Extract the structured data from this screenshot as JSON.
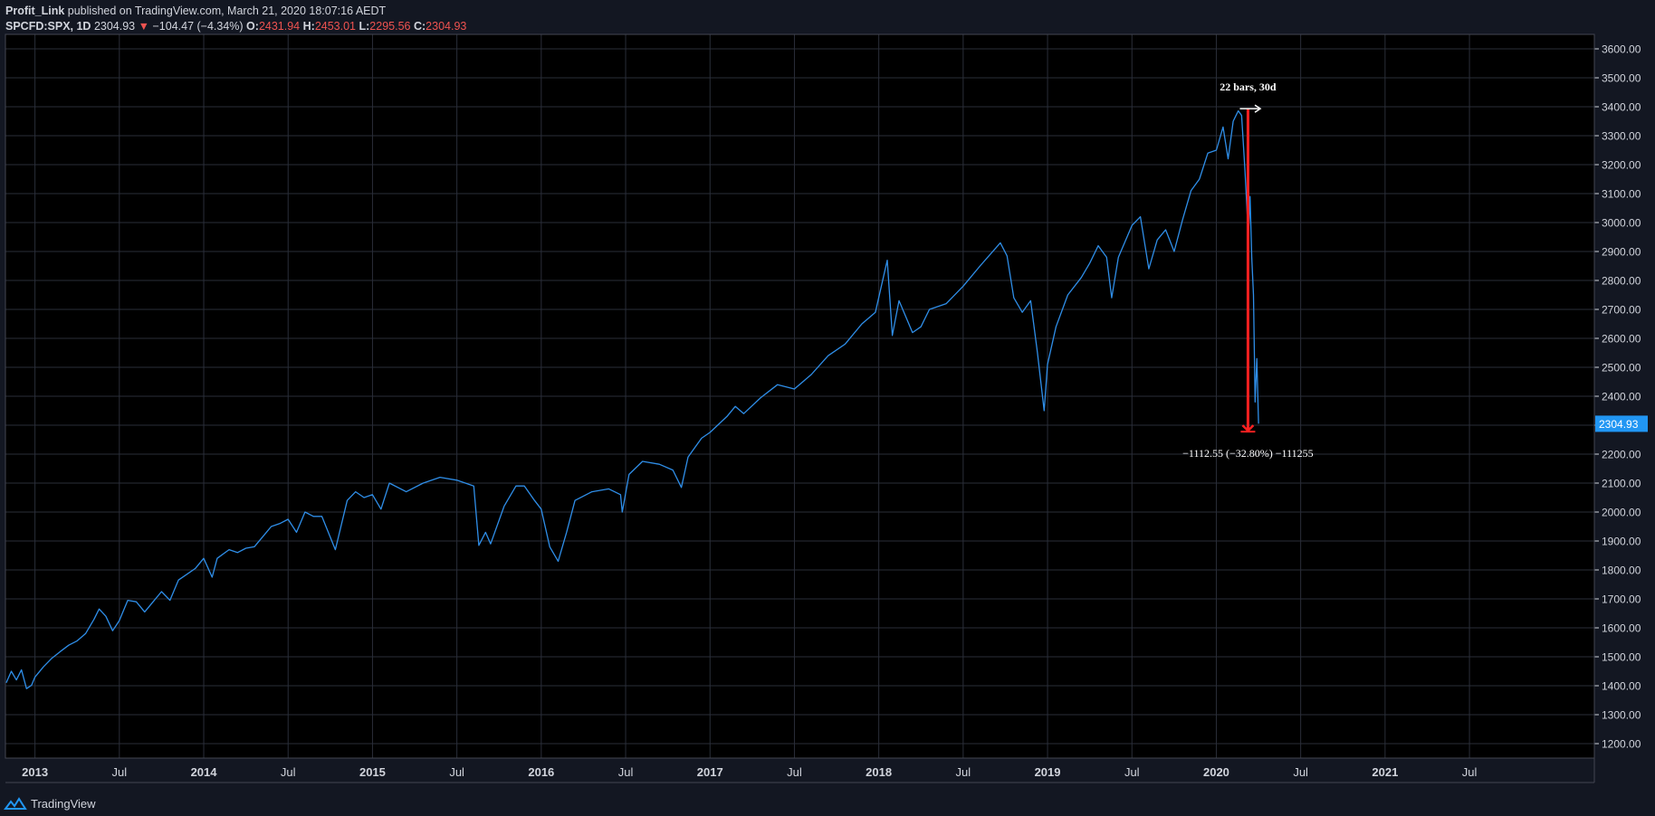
{
  "header": {
    "author": "Profit_Link",
    "published_text": "published on TradingView.com, March 21, 2020 18:07:16 AEDT",
    "symbol": "SPCFD:SPX, 1D",
    "last": "2304.93",
    "down_arrow": "▼",
    "change": "−104.47 (−4.34%)",
    "o_label": "O:",
    "o_value": "2431.94",
    "h_label": "H:",
    "h_value": "2453.01",
    "l_label": "L:",
    "l_value": "2295.56",
    "c_label": "C:",
    "c_value": "2304.93"
  },
  "footer": {
    "brand": "TradingView",
    "logo_icon": "tradingview-logo-icon"
  },
  "colors": {
    "background": "#131722",
    "plot_bg": "#000000",
    "grid": "#2a2e39",
    "line": "#2f8ee8",
    "measure": "#ff2020",
    "price_label_bg": "#2196f3",
    "text": "#d1d4dc",
    "down": "#ef5350"
  },
  "chart_data": {
    "type": "line",
    "title": "SPCFD:SPX, 1D",
    "xlabel": "",
    "ylabel": "",
    "y_ticks": [
      "3600.00",
      "3500.00",
      "3400.00",
      "3300.00",
      "3200.00",
      "3100.00",
      "3000.00",
      "2900.00",
      "2800.00",
      "2700.00",
      "2600.00",
      "2500.00",
      "2400.00",
      "2300.00",
      "2200.00",
      "2100.00",
      "2000.00",
      "1900.00",
      "1800.00",
      "1700.00",
      "1600.00",
      "1500.00",
      "1400.00",
      "1300.00",
      "1200.00"
    ],
    "x_ticks": [
      {
        "label": "2013",
        "t": 2013.0
      },
      {
        "label": "Jul",
        "t": 2013.5
      },
      {
        "label": "2014",
        "t": 2014.0
      },
      {
        "label": "Jul",
        "t": 2014.5
      },
      {
        "label": "2015",
        "t": 2015.0
      },
      {
        "label": "Jul",
        "t": 2015.5
      },
      {
        "label": "2016",
        "t": 2016.0
      },
      {
        "label": "Jul",
        "t": 2016.5
      },
      {
        "label": "2017",
        "t": 2017.0
      },
      {
        "label": "Jul",
        "t": 2017.5
      },
      {
        "label": "2018",
        "t": 2018.0
      },
      {
        "label": "Jul",
        "t": 2018.5
      },
      {
        "label": "2019",
        "t": 2019.0
      },
      {
        "label": "Jul",
        "t": 2019.5
      },
      {
        "label": "2020",
        "t": 2020.0
      },
      {
        "label": "Jul",
        "t": 2020.5
      },
      {
        "label": "2021",
        "t": 2021.0
      },
      {
        "label": "Jul",
        "t": 2021.5
      }
    ],
    "xlim": [
      2012.825,
      2022.24
    ],
    "ylim": [
      1150,
      3650
    ],
    "grid": true,
    "last_price_label": "2304.93",
    "series": [
      {
        "values": [
          [
            2012.83,
            1410
          ],
          [
            2012.86,
            1450
          ],
          [
            2012.89,
            1420
          ],
          [
            2012.92,
            1455
          ],
          [
            2012.95,
            1390
          ],
          [
            2012.98,
            1402
          ],
          [
            2013.0,
            1430
          ],
          [
            2013.05,
            1465
          ],
          [
            2013.1,
            1495
          ],
          [
            2013.15,
            1518
          ],
          [
            2013.2,
            1540
          ],
          [
            2013.25,
            1555
          ],
          [
            2013.3,
            1580
          ],
          [
            2013.35,
            1630
          ],
          [
            2013.38,
            1665
          ],
          [
            2013.42,
            1640
          ],
          [
            2013.46,
            1590
          ],
          [
            2013.5,
            1625
          ],
          [
            2013.55,
            1695
          ],
          [
            2013.6,
            1690
          ],
          [
            2013.65,
            1655
          ],
          [
            2013.7,
            1690
          ],
          [
            2013.75,
            1725
          ],
          [
            2013.8,
            1695
          ],
          [
            2013.85,
            1765
          ],
          [
            2013.9,
            1785
          ],
          [
            2013.95,
            1805
          ],
          [
            2014.0,
            1840
          ],
          [
            2014.05,
            1775
          ],
          [
            2014.08,
            1840
          ],
          [
            2014.15,
            1870
          ],
          [
            2014.2,
            1860
          ],
          [
            2014.25,
            1875
          ],
          [
            2014.3,
            1880
          ],
          [
            2014.35,
            1915
          ],
          [
            2014.4,
            1950
          ],
          [
            2014.45,
            1960
          ],
          [
            2014.5,
            1975
          ],
          [
            2014.55,
            1930
          ],
          [
            2014.6,
            2000
          ],
          [
            2014.65,
            1985
          ],
          [
            2014.7,
            1985
          ],
          [
            2014.78,
            1870
          ],
          [
            2014.85,
            2040
          ],
          [
            2014.9,
            2070
          ],
          [
            2014.95,
            2050
          ],
          [
            2015.0,
            2060
          ],
          [
            2015.05,
            2010
          ],
          [
            2015.1,
            2100
          ],
          [
            2015.2,
            2070
          ],
          [
            2015.3,
            2100
          ],
          [
            2015.4,
            2120
          ],
          [
            2015.5,
            2110
          ],
          [
            2015.55,
            2100
          ],
          [
            2015.6,
            2090
          ],
          [
            2015.63,
            1885
          ],
          [
            2015.67,
            1930
          ],
          [
            2015.7,
            1890
          ],
          [
            2015.78,
            2020
          ],
          [
            2015.85,
            2090
          ],
          [
            2015.9,
            2090
          ],
          [
            2015.96,
            2040
          ],
          [
            2016.0,
            2010
          ],
          [
            2016.05,
            1880
          ],
          [
            2016.1,
            1830
          ],
          [
            2016.15,
            1930
          ],
          [
            2016.2,
            2040
          ],
          [
            2016.3,
            2070
          ],
          [
            2016.4,
            2080
          ],
          [
            2016.47,
            2060
          ],
          [
            2016.48,
            2000
          ],
          [
            2016.52,
            2130
          ],
          [
            2016.6,
            2175
          ],
          [
            2016.7,
            2165
          ],
          [
            2016.78,
            2145
          ],
          [
            2016.83,
            2085
          ],
          [
            2016.87,
            2190
          ],
          [
            2016.95,
            2255
          ],
          [
            2017.0,
            2275
          ],
          [
            2017.1,
            2330
          ],
          [
            2017.15,
            2365
          ],
          [
            2017.2,
            2340
          ],
          [
            2017.3,
            2395
          ],
          [
            2017.4,
            2440
          ],
          [
            2017.5,
            2425
          ],
          [
            2017.6,
            2475
          ],
          [
            2017.7,
            2540
          ],
          [
            2017.8,
            2580
          ],
          [
            2017.9,
            2650
          ],
          [
            2017.98,
            2690
          ],
          [
            2018.05,
            2870
          ],
          [
            2018.08,
            2610
          ],
          [
            2018.12,
            2730
          ],
          [
            2018.2,
            2620
          ],
          [
            2018.25,
            2640
          ],
          [
            2018.3,
            2700
          ],
          [
            2018.4,
            2720
          ],
          [
            2018.5,
            2780
          ],
          [
            2018.6,
            2850
          ],
          [
            2018.72,
            2930
          ],
          [
            2018.76,
            2885
          ],
          [
            2018.8,
            2740
          ],
          [
            2018.85,
            2690
          ],
          [
            2018.9,
            2730
          ],
          [
            2018.94,
            2550
          ],
          [
            2018.98,
            2350
          ],
          [
            2019.0,
            2510
          ],
          [
            2019.05,
            2640
          ],
          [
            2019.12,
            2750
          ],
          [
            2019.2,
            2810
          ],
          [
            2019.25,
            2860
          ],
          [
            2019.3,
            2920
          ],
          [
            2019.35,
            2880
          ],
          [
            2019.38,
            2740
          ],
          [
            2019.42,
            2880
          ],
          [
            2019.5,
            2990
          ],
          [
            2019.55,
            3020
          ],
          [
            2019.6,
            2840
          ],
          [
            2019.65,
            2940
          ],
          [
            2019.7,
            2975
          ],
          [
            2019.75,
            2900
          ],
          [
            2019.8,
            3010
          ],
          [
            2019.85,
            3110
          ],
          [
            2019.9,
            3150
          ],
          [
            2019.95,
            3240
          ],
          [
            2020.0,
            3250
          ],
          [
            2020.04,
            3330
          ],
          [
            2020.07,
            3220
          ],
          [
            2020.1,
            3350
          ],
          [
            2020.13,
            3386
          ],
          [
            2020.15,
            3370
          ],
          [
            2020.17,
            3180
          ],
          [
            2020.19,
            2950
          ],
          [
            2020.2,
            3090
          ],
          [
            2020.21,
            2880
          ],
          [
            2020.22,
            2750
          ],
          [
            2020.23,
            2380
          ],
          [
            2020.24,
            2530
          ],
          [
            2020.25,
            2305
          ]
        ]
      }
    ],
    "measure": {
      "top_label": "22 bars, 30d",
      "bottom_label": "−1112.55 (−32.80%) −111255",
      "from": {
        "t": 2020.15,
        "v": 3393.52
      },
      "to": {
        "t": 2020.25,
        "v": 2280.97
      }
    }
  }
}
